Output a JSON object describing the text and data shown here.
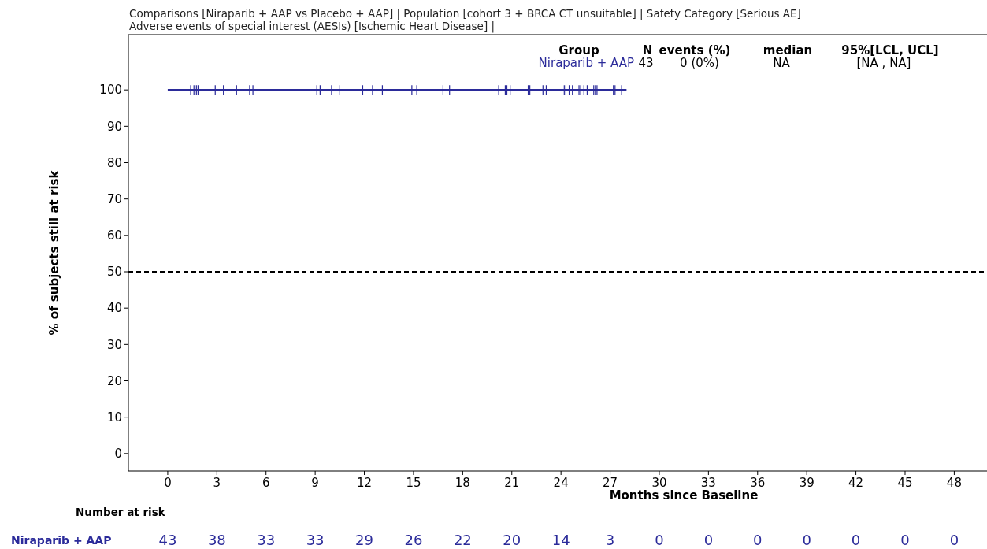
{
  "chart_data": {
    "type": "step",
    "title": "Comparisons [Niraparib + AAP vs Placebo + AAP] | Population [cohort 3 + BRCA CT unsuitable] | Safety Category [Serious AE]",
    "subtitle": "Adverse events of special interest (AESIs) [Ischemic Heart Disease] |",
    "xlabel": "Months since Baseline",
    "ylabel": "% of subjects still at risk",
    "xlim": [
      -2.4,
      50
    ],
    "xticks": [
      0,
      3,
      6,
      9,
      12,
      15,
      18,
      21,
      24,
      27,
      30,
      33,
      36,
      39,
      42,
      45,
      48
    ],
    "ylim": [
      -4.8,
      115.2
    ],
    "yticks": [
      0,
      10,
      20,
      30,
      40,
      50,
      60,
      70,
      80,
      90,
      100
    ],
    "grid": false,
    "legend": "top right",
    "series": [
      {
        "name": "Niraparib + AAP",
        "color": "#2b2b9a",
        "line_style": "solid",
        "marker": "none",
        "x": [
          0,
          28
        ],
        "values": [
          100,
          100
        ]
      },
      {
        "type": "scatter",
        "color": "#2b2b9a",
        "marker": "cross",
        "x": [
          1.4,
          1.6,
          1.75,
          1.85,
          2.9,
          3.4,
          4.2,
          5.0,
          5.2,
          9.1,
          9.3,
          10.0,
          10.5,
          11.9,
          12.5,
          13.1,
          14.9,
          15.2,
          16.8,
          17.2,
          20.2,
          20.6,
          20.7,
          20.9,
          22.0,
          22.1,
          22.9,
          23.1,
          24.2,
          24.3,
          24.5,
          24.7,
          25.1,
          25.2,
          25.4,
          25.6,
          26.0,
          26.1,
          26.2,
          27.2,
          27.3,
          27.7
        ],
        "values": [
          100,
          100,
          100,
          100,
          100,
          100,
          100,
          100,
          100,
          100,
          100,
          100,
          100,
          100,
          100,
          100,
          100,
          100,
          100,
          100,
          100,
          100,
          100,
          100,
          100,
          100,
          100,
          100,
          100,
          100,
          100,
          100,
          100,
          100,
          100,
          100,
          100,
          100,
          100,
          100,
          100,
          100
        ]
      }
    ],
    "ref_lines": [
      {
        "axis": "y",
        "value": 50,
        "color": "#000000",
        "line_style": "dashed"
      }
    ],
    "annotations": [
      "Group",
      "N",
      "events (%)",
      "median",
      "95%[LCL, UCL]",
      "43",
      "0 (0%)",
      "NA",
      "[NA , NA]",
      "Number at risk",
      "Niraparib + AAP",
      "43",
      "38",
      "33",
      "33",
      "29",
      "26",
      "22",
      "20",
      "14",
      "3",
      "0",
      "0",
      "0",
      "0",
      "0",
      "0",
      "0"
    ]
  }
}
